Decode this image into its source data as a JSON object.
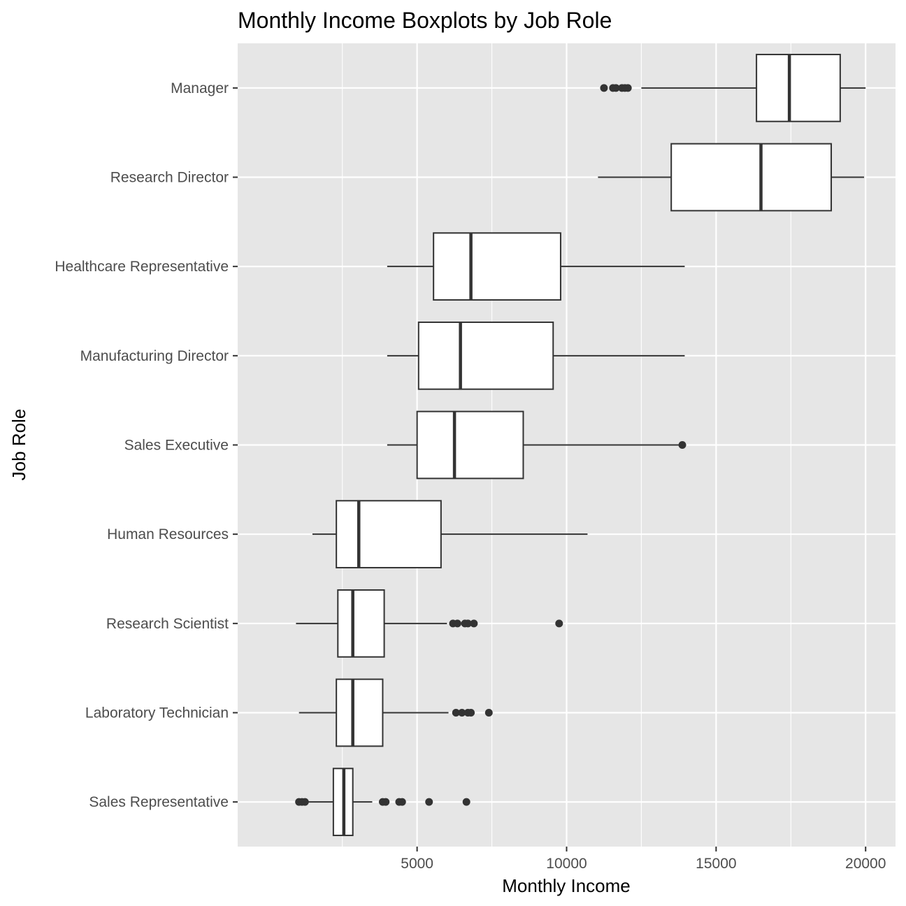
{
  "chart_data": {
    "type": "boxplot",
    "title": "Monthly Income Boxplots by Job Role",
    "xlabel": "Monthly Income",
    "ylabel": "Job Role",
    "xlim": [
      -1000,
      21000
    ],
    "x_ticks": [
      5000,
      10000,
      15000,
      20000
    ],
    "grid": true,
    "orientation": "horizontal",
    "colors": {
      "panel": "#e6e6e6",
      "grid": "#ffffff",
      "box_fill": "#ffffff",
      "box_stroke": "#333333",
      "outlier": "#333333"
    },
    "categories": [
      "Manager",
      "Research Director",
      "Healthcare Representative",
      "Manufacturing Director",
      "Sales Executive",
      "Human Resources",
      "Research Scientist",
      "Laboratory Technician",
      "Sales Representative"
    ],
    "boxes": [
      {
        "category": "Manager",
        "whisker_low": 12500,
        "q1": 16350,
        "median": 17450,
        "q3": 19150,
        "whisker_high": 19999,
        "outliers": [
          11250,
          11550,
          11650,
          11850,
          11950,
          12050
        ]
      },
      {
        "category": "Research Director",
        "whisker_low": 11050,
        "q1": 13500,
        "median": 16500,
        "q3": 18850,
        "whisker_high": 19950,
        "outliers": []
      },
      {
        "category": "Healthcare Representative",
        "whisker_low": 4000,
        "q1": 5550,
        "median": 6800,
        "q3": 9800,
        "whisker_high": 13950,
        "outliers": []
      },
      {
        "category": "Manufacturing Director",
        "whisker_low": 4000,
        "q1": 5050,
        "median": 6450,
        "q3": 9550,
        "whisker_high": 13950,
        "outliers": []
      },
      {
        "category": "Sales Executive",
        "whisker_low": 4000,
        "q1": 5000,
        "median": 6250,
        "q3": 8550,
        "whisker_high": 13850,
        "outliers": [
          13870
        ]
      },
      {
        "category": "Human Resources",
        "whisker_low": 1500,
        "q1": 2300,
        "median": 3050,
        "q3": 5800,
        "whisker_high": 10700,
        "outliers": []
      },
      {
        "category": "Research Scientist",
        "whisker_low": 950,
        "q1": 2350,
        "median": 2850,
        "q3": 3900,
        "whisker_high": 6000,
        "outliers": [
          6200,
          6350,
          6600,
          6700,
          6900,
          9750
        ]
      },
      {
        "category": "Laboratory Technician",
        "whisker_low": 1050,
        "q1": 2300,
        "median": 2850,
        "q3": 3850,
        "whisker_high": 6050,
        "outliers": [
          6300,
          6500,
          6700,
          6800,
          7400
        ]
      },
      {
        "category": "Sales Representative",
        "whisker_low": 1050,
        "q1": 2200,
        "median": 2550,
        "q3": 2850,
        "whisker_high": 3500,
        "outliers": [
          1050,
          1150,
          1250,
          3850,
          3950,
          4400,
          4500,
          5400,
          6650
        ]
      }
    ]
  }
}
